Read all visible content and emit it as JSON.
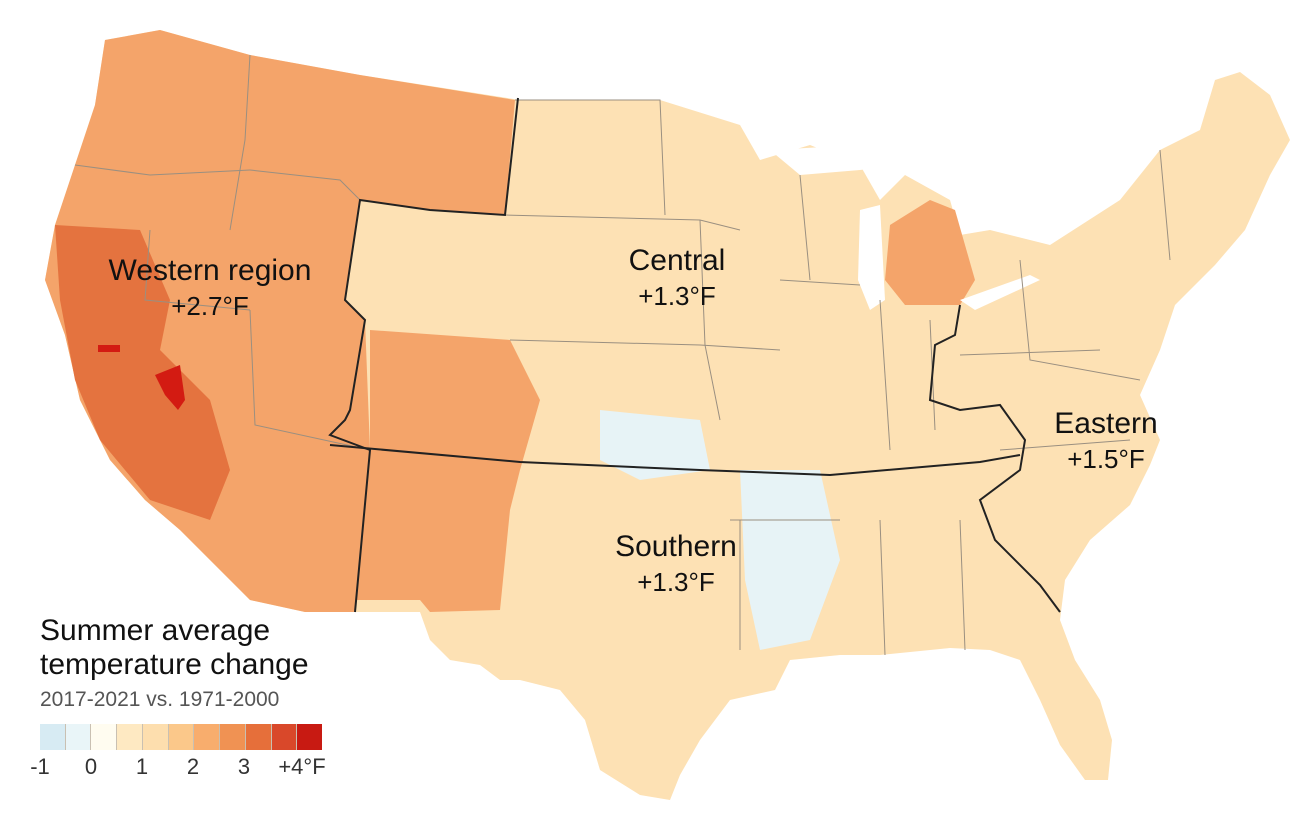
{
  "regions": [
    {
      "name": "Western region",
      "value": "+2.7°F"
    },
    {
      "name": "Central",
      "value": "+1.3°F"
    },
    {
      "name": "Southern",
      "value": "+1.3°F"
    },
    {
      "name": "Eastern",
      "value": "+1.5°F"
    }
  ],
  "legend": {
    "title_line1": "Summer average",
    "title_line2": "temperature change",
    "subtitle": "2017-2021 vs. 1971-2000",
    "colors": [
      "#d7ebf3",
      "#e9f5f8",
      "#fffcf0",
      "#fee9c2",
      "#fddeae",
      "#fbc88a",
      "#f8ad6d",
      "#f09253",
      "#e66f3a",
      "#d9482a",
      "#c81a12"
    ],
    "ticks": [
      "-1",
      "0",
      "1",
      "2",
      "3",
      "+4°F"
    ]
  },
  "map_colors": {
    "land": "#fde1b4",
    "western": "#f4a46a",
    "western_hot": "#e4733f",
    "hottest": "#d31b12",
    "cool": "#e7f3f6",
    "lakes": "#ffffff",
    "region_border": "#222222",
    "state_border": "#9a8f80"
  }
}
